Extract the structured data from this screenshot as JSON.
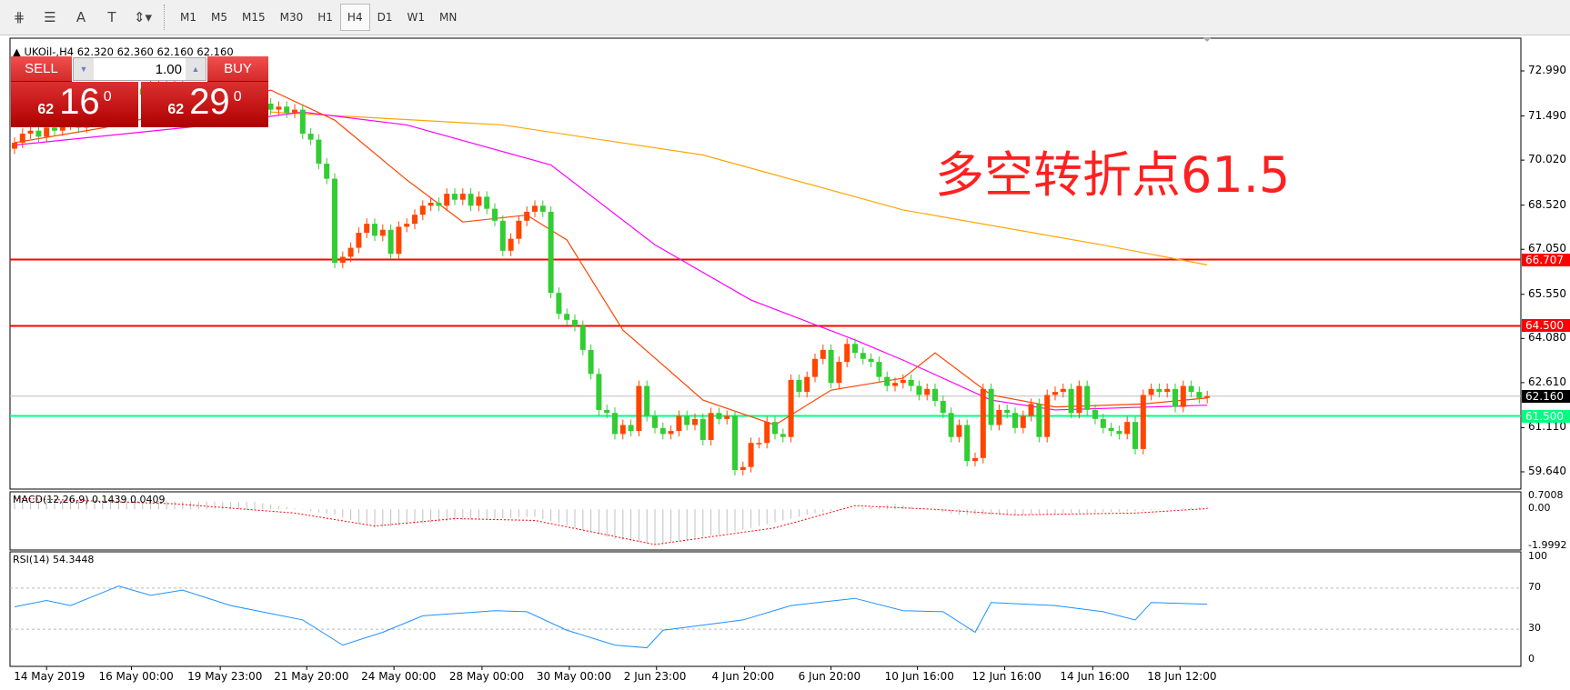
{
  "toolbar": {
    "tools": [
      {
        "icon": "elliott-wave-icon",
        "glyph": "⋕"
      },
      {
        "icon": "fibonacci-icon",
        "glyph": "☰"
      },
      {
        "icon": "text-icon",
        "glyph": "A"
      },
      {
        "icon": "text-label-icon",
        "glyph": "T"
      },
      {
        "icon": "arrows-icon",
        "glyph": "⇕▾"
      }
    ],
    "timeframes": [
      "M1",
      "M5",
      "M15",
      "M30",
      "H1",
      "H4",
      "D1",
      "W1",
      "MN"
    ],
    "active_timeframe": "H4"
  },
  "chart": {
    "header": "UKOil-,H4  62.320 62.360 62.160 62.160",
    "symbol_marker": "▲"
  },
  "trade_panel": {
    "sell_label": "SELL",
    "buy_label": "BUY",
    "volume": "1.00",
    "sell_price": {
      "prefix": "62",
      "main": "16",
      "sup": "0"
    },
    "buy_price": {
      "prefix": "62",
      "main": "29",
      "sup": "0"
    }
  },
  "annotation": "多空转折点61.5",
  "chart_data": {
    "type": "candlestick",
    "price_axis": {
      "ticks": [
        "72.990",
        "71.490",
        "70.020",
        "68.520",
        "67.050",
        "65.550",
        "64.080",
        "62.610",
        "61.110",
        "59.640"
      ],
      "range": [
        59.64,
        72.99
      ]
    },
    "first_open": 70.4,
    "closes": [
      70.6,
      70.9,
      71.0,
      70.8,
      71.1,
      71.0,
      71.2,
      71.3,
      71.1,
      71.4,
      71.5,
      71.7,
      71.9,
      72.1,
      72.3,
      72.4,
      72.2,
      72.5,
      72.6,
      72.4,
      72.5,
      72.3,
      72.4,
      72.2,
      72.0,
      72.1,
      71.9,
      72.0,
      71.8,
      71.9,
      71.8,
      71.9,
      71.7,
      71.8,
      71.6,
      71.7,
      70.9,
      70.7,
      69.9,
      69.4,
      66.6,
      66.8,
      67.1,
      67.6,
      67.9,
      67.5,
      67.7,
      66.9,
      67.8,
      67.9,
      68.2,
      68.5,
      68.6,
      68.5,
      68.9,
      68.7,
      68.9,
      68.5,
      68.8,
      68.4,
      68.0,
      67.0,
      67.4,
      68.0,
      68.3,
      68.5,
      68.3,
      65.6,
      64.9,
      64.7,
      64.5,
      63.7,
      62.9,
      61.7,
      61.6,
      60.9,
      61.2,
      61.0,
      62.5,
      61.5,
      61.1,
      60.9,
      61.0,
      61.5,
      61.2,
      61.4,
      60.7,
      61.6,
      61.4,
      61.5,
      59.7,
      59.8,
      60.6,
      60.6,
      61.3,
      60.9,
      60.8,
      62.7,
      62.3,
      62.8,
      63.4,
      63.7,
      62.6,
      63.3,
      63.9,
      63.6,
      63.4,
      63.3,
      62.8,
      62.5,
      62.6,
      62.7,
      62.5,
      62.2,
      62.4,
      62.0,
      61.6,
      60.8,
      61.2,
      60.0,
      60.1,
      62.4,
      61.2,
      61.7,
      61.6,
      61.1,
      61.5,
      61.9,
      60.8,
      62.2,
      62.3,
      62.4,
      61.6,
      62.5,
      61.7,
      61.4,
      61.1,
      61.0,
      60.9,
      61.3,
      60.4,
      62.2,
      62.4,
      62.3,
      62.4,
      61.8,
      62.5,
      62.3,
      62.1,
      62.16
    ],
    "up_color": "#ff4500",
    "down_color": "#32cd32",
    "moving_averages": [
      {
        "color": "#ffa500",
        "points": [
          [
            32,
            71.62
          ],
          [
            61,
            71.19
          ],
          [
            86,
            70.19
          ],
          [
            111,
            68.36
          ],
          [
            136,
            67.19
          ],
          [
            149,
            66.53
          ]
        ]
      },
      {
        "color": "#ff00ff",
        "points": [
          [
            0,
            70.52
          ],
          [
            22,
            71.12
          ],
          [
            36,
            71.62
          ],
          [
            49,
            71.19
          ],
          [
            67,
            69.86
          ],
          [
            80,
            67.2
          ],
          [
            92,
            65.36
          ],
          [
            105,
            64.03
          ],
          [
            111,
            63.36
          ],
          [
            122,
            62.03
          ],
          [
            130,
            61.7
          ],
          [
            149,
            61.86
          ]
        ]
      },
      {
        "color": "#ff4500",
        "points": [
          [
            0,
            70.6
          ],
          [
            11,
            71.09
          ],
          [
            32,
            72.35
          ],
          [
            40,
            71.35
          ],
          [
            49,
            69.36
          ],
          [
            56,
            67.96
          ],
          [
            64,
            68.19
          ],
          [
            69,
            67.36
          ],
          [
            76,
            64.36
          ],
          [
            86,
            62.03
          ],
          [
            95,
            61.2
          ],
          [
            102,
            62.36
          ],
          [
            111,
            62.76
          ],
          [
            115,
            63.6
          ],
          [
            122,
            62.2
          ],
          [
            130,
            61.8
          ],
          [
            141,
            61.9
          ],
          [
            149,
            62.1
          ]
        ]
      }
    ],
    "horizontal_lines": [
      {
        "price": "66.707",
        "color": "#ff0000"
      },
      {
        "price": "64.500",
        "color": "#ff0000"
      },
      {
        "price": "61.500",
        "color": "#00ff7f"
      }
    ],
    "current_price": {
      "price": "62.160",
      "color": "#000000"
    },
    "time_labels": [
      {
        "label": "14 May 2019",
        "bar": 4
      },
      {
        "label": "16 May 00:00",
        "bar": 14.6
      },
      {
        "label": "19 May 23:00",
        "bar": 25.7
      },
      {
        "label": "21 May 20:00",
        "bar": 36.5
      },
      {
        "label": "24 May 00:00",
        "bar": 47.4
      },
      {
        "label": "28 May 00:00",
        "bar": 58.4
      },
      {
        "label": "30 May 00:00",
        "bar": 69.3
      },
      {
        "label": "2 Jun 23:00",
        "bar": 80.2
      },
      {
        "label": "4 Jun 20:00",
        "bar": 91.2
      },
      {
        "label": "6 Jun 20:00",
        "bar": 102
      },
      {
        "label": "10 Jun 16:00",
        "bar": 112.8
      },
      {
        "label": "12 Jun 16:00",
        "bar": 123.7
      },
      {
        "label": "14 Jun 16:00",
        "bar": 134.7
      },
      {
        "label": "18 Jun 12:00",
        "bar": 145.6
      }
    ],
    "macd": {
      "label": "MACD(12,26,9) 0.1439 0.0409",
      "ticks": [
        "0.7008",
        "0.00",
        "-1.9992"
      ],
      "range": [
        -1.9992,
        0.7008
      ],
      "histogram": [
        [
          0,
          0.5
        ],
        [
          30,
          0.4
        ],
        [
          40,
          -0.3
        ],
        [
          45,
          -1.0
        ],
        [
          55,
          -0.6
        ],
        [
          65,
          -0.4
        ],
        [
          75,
          -1.6
        ],
        [
          80,
          -1.9
        ],
        [
          90,
          -1.2
        ],
        [
          100,
          -0.2
        ],
        [
          110,
          0.3
        ],
        [
          118,
          -0.3
        ],
        [
          125,
          -0.3
        ],
        [
          140,
          -0.1
        ],
        [
          149,
          0.14
        ]
      ],
      "signal": [
        [
          0,
          0.6
        ],
        [
          20,
          0.3
        ],
        [
          35,
          -0.2
        ],
        [
          45,
          -0.9
        ],
        [
          55,
          -0.5
        ],
        [
          65,
          -0.6
        ],
        [
          80,
          -1.9
        ],
        [
          95,
          -1.0
        ],
        [
          105,
          0.2
        ],
        [
          115,
          0.0
        ],
        [
          125,
          -0.3
        ],
        [
          140,
          -0.2
        ],
        [
          149,
          0.04
        ]
      ]
    },
    "rsi": {
      "label": "RSI(14) 54.3448",
      "ticks": [
        "100",
        "70",
        "30",
        "0"
      ],
      "levels": [
        70,
        30
      ],
      "points": [
        [
          0,
          51.8
        ],
        [
          4,
          58
        ],
        [
          7,
          53
        ],
        [
          13,
          72
        ],
        [
          17,
          63
        ],
        [
          21,
          68
        ],
        [
          27,
          53
        ],
        [
          36,
          39
        ],
        [
          41,
          14.5
        ],
        [
          46,
          27
        ],
        [
          51,
          43
        ],
        [
          60,
          48
        ],
        [
          64,
          47
        ],
        [
          69,
          29
        ],
        [
          75,
          14.5
        ],
        [
          79,
          11.9
        ],
        [
          81,
          29
        ],
        [
          86,
          34
        ],
        [
          91,
          39
        ],
        [
          97,
          53
        ],
        [
          105,
          60
        ],
        [
          111,
          48
        ],
        [
          116,
          47
        ],
        [
          120,
          27
        ],
        [
          122,
          56
        ],
        [
          130,
          53
        ],
        [
          136,
          47
        ],
        [
          140,
          39
        ],
        [
          142,
          56
        ],
        [
          149,
          54.3
        ]
      ]
    }
  }
}
